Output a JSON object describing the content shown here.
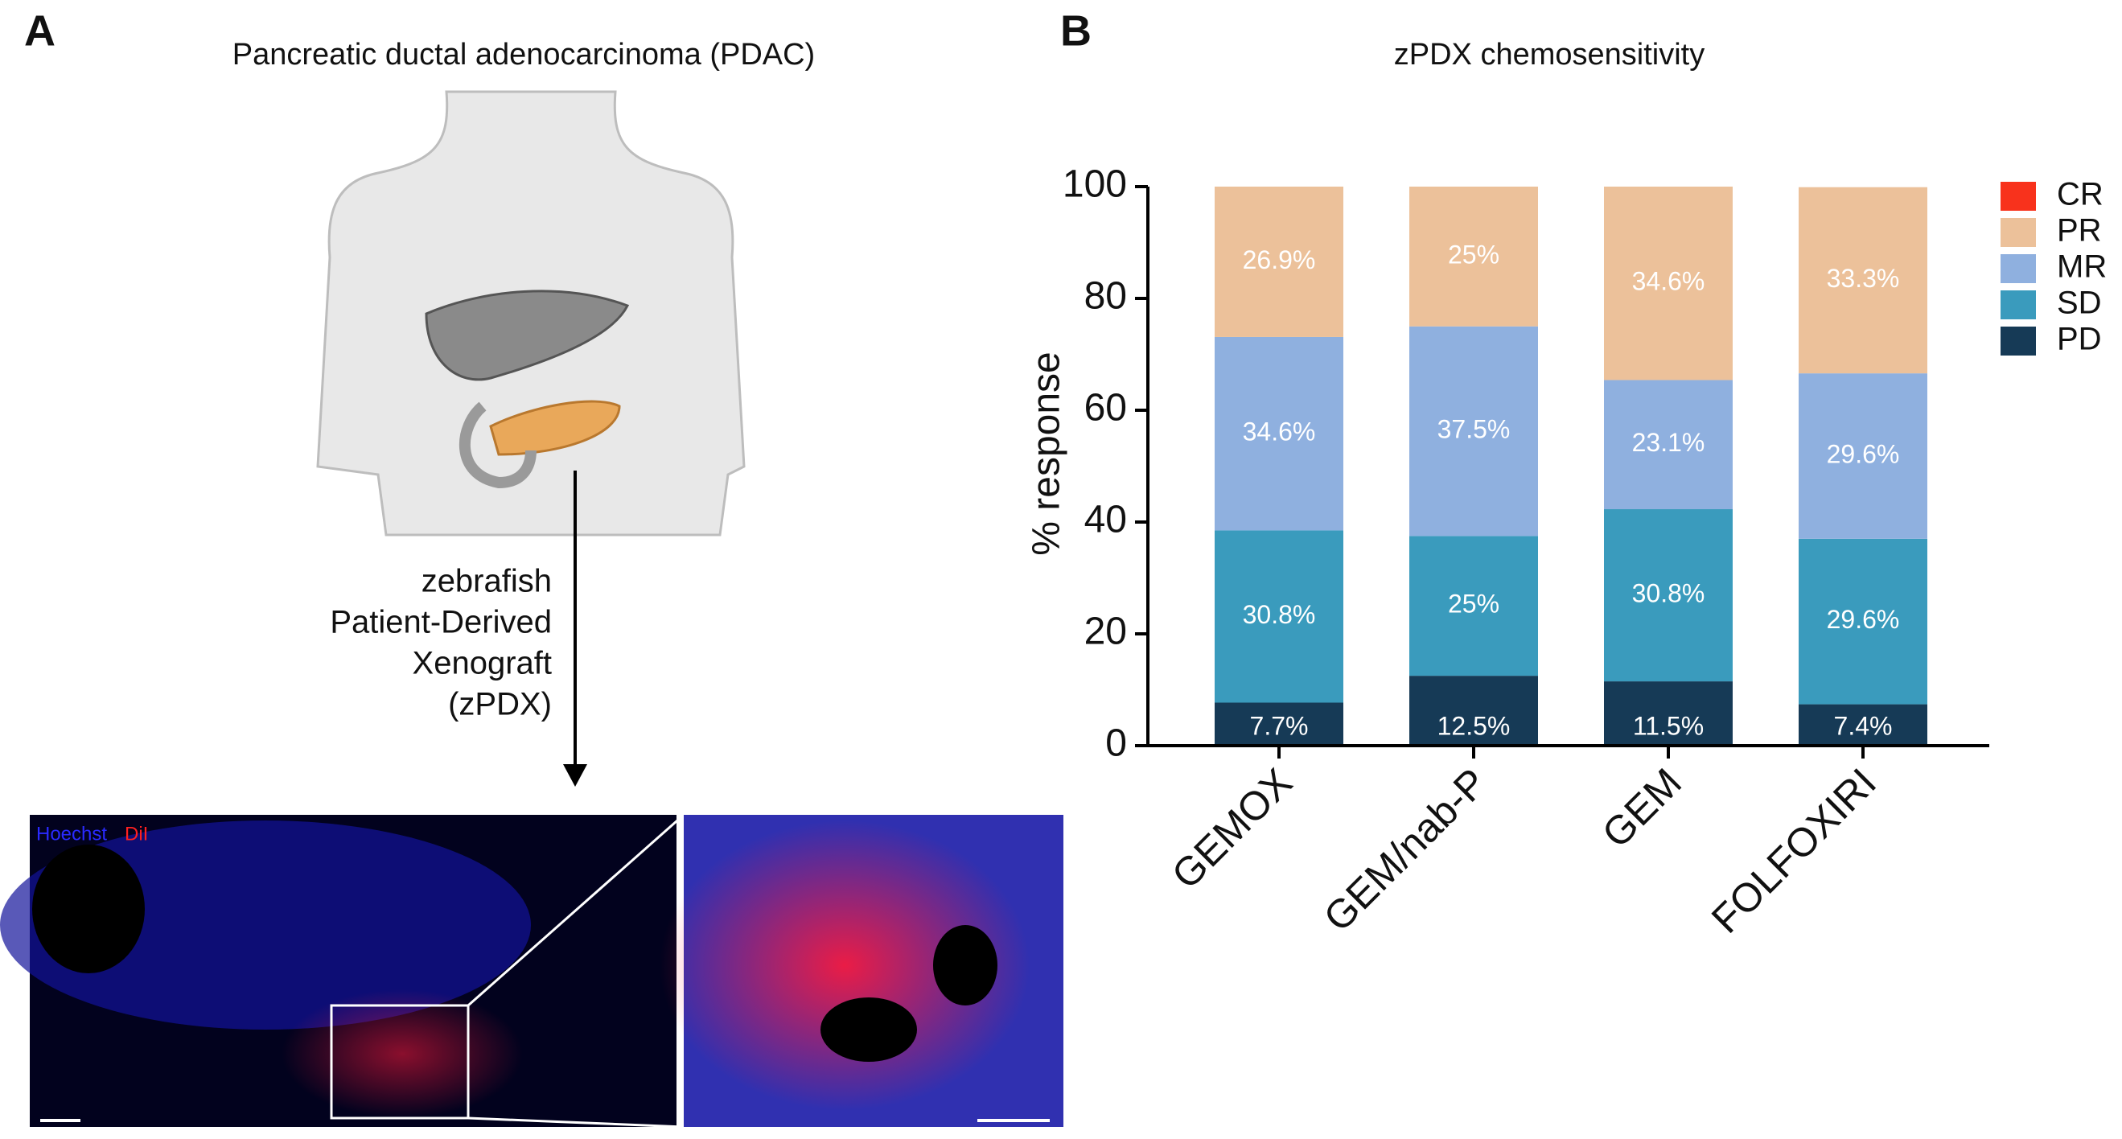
{
  "panel_a": {
    "label": "A",
    "title": "Pancreatic ductal adenocarcinoma (PDAC)",
    "arrow_text": [
      "zebrafish",
      "Patient-Derived",
      "Xenograft",
      "(zPDX)"
    ],
    "stain_labels": [
      "Hoechst",
      "DiI"
    ]
  },
  "chart_data": {
    "type": "stacked_bar",
    "panel_label": "B",
    "title": "zPDX chemosensitivity",
    "ylabel": "% response",
    "categories": [
      "GEMOX",
      "GEM/nab-P",
      "GEM",
      "FOLFOXIRI"
    ],
    "series": [
      {
        "name": "PD",
        "color": "#163a56",
        "values": [
          7.7,
          12.5,
          11.5,
          7.4
        ],
        "value_labels": [
          "7.7%",
          "12.5%",
          "11.5%",
          "7.4%"
        ]
      },
      {
        "name": "SD",
        "color": "#3a9bbd",
        "values": [
          30.8,
          25,
          30.8,
          29.6
        ],
        "value_labels": [
          "30.8%",
          "25%",
          "30.8%",
          "29.6%"
        ]
      },
      {
        "name": "MR",
        "color": "#8fb0df",
        "values": [
          34.6,
          37.5,
          23.1,
          29.6
        ],
        "value_labels": [
          "34.6%",
          "37.5%",
          "23.1%",
          "29.6%"
        ]
      },
      {
        "name": "PR",
        "color": "#ecc19a",
        "values": [
          26.9,
          25,
          34.6,
          33.3
        ],
        "value_labels": [
          "26.9%",
          "25%",
          "34.6%",
          "33.3%"
        ]
      },
      {
        "name": "CR",
        "color": "#f8321c",
        "values": [
          0,
          0,
          0,
          0
        ]
      }
    ],
    "ylim": [
      0,
      100
    ],
    "yticks": [
      0,
      20,
      40,
      60,
      80,
      100
    ]
  }
}
